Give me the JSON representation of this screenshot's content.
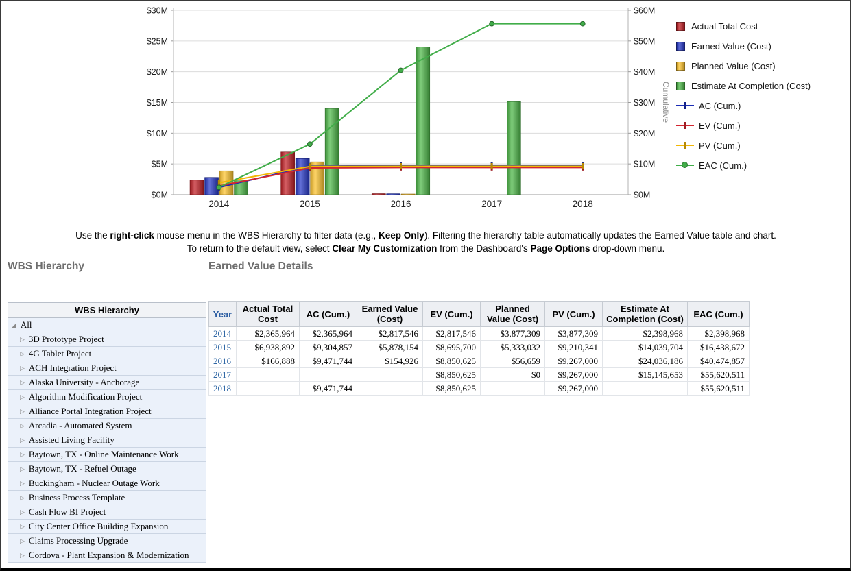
{
  "chart_data": {
    "type": "combo-bar-line",
    "x_categories": [
      "2014",
      "2015",
      "2016",
      "2017",
      "2018"
    ],
    "left_axis": {
      "title": "",
      "unit": "$M",
      "range": [
        0,
        30
      ],
      "tick_values": [
        0,
        5,
        10,
        15,
        20,
        25,
        30
      ],
      "tick_labels": [
        "$0M",
        "$5M",
        "$10M",
        "$15M",
        "$20M",
        "$25M",
        "$30M"
      ]
    },
    "right_axis": {
      "title": "Cumulative",
      "unit": "$M",
      "range": [
        0,
        60
      ],
      "tick_values": [
        0,
        10,
        20,
        30,
        40,
        50,
        60
      ],
      "tick_labels": [
        "$0M",
        "$10M",
        "$20M",
        "$30M",
        "$40M",
        "$50M",
        "$60M"
      ]
    },
    "grid": true,
    "legend_position": "right",
    "bar_series": [
      {
        "name": "Actual Total Cost",
        "color": "#c32026",
        "axis": "left",
        "values_millions": [
          2.365964,
          6.938892,
          0.166888,
          null,
          null
        ]
      },
      {
        "name": "Earned Value (Cost)",
        "color": "#2638c8",
        "axis": "left",
        "values_millions": [
          2.817546,
          5.878154,
          0.154926,
          null,
          null
        ]
      },
      {
        "name": "Planned Value (Cost)",
        "color": "#ffc52f",
        "axis": "left",
        "values_millions": [
          3.877309,
          5.333032,
          0.056659,
          0,
          null
        ]
      },
      {
        "name": "Estimate At Completion (Cost)",
        "color": "#4db848",
        "axis": "left",
        "values_millions": [
          2.398968,
          14.039704,
          24.036186,
          15.145653,
          null
        ]
      }
    ],
    "line_series": [
      {
        "name": "AC (Cum.)",
        "color": "#1b2db5",
        "axis": "right",
        "marker": "tick",
        "values_millions": [
          2.365964,
          9.304857,
          9.471744,
          9.471744,
          9.471744
        ]
      },
      {
        "name": "EV (Cum.)",
        "color": "#d22630",
        "axis": "right",
        "marker": "tick",
        "values_millions": [
          2.817546,
          8.6957,
          8.850625,
          8.850625,
          8.850625
        ]
      },
      {
        "name": "PV (Cum.)",
        "color": "#f2b705",
        "axis": "right",
        "marker": "tick",
        "values_millions": [
          3.877309,
          9.210341,
          9.267,
          9.267,
          9.267
        ]
      },
      {
        "name": "EAC (Cum.)",
        "color": "#41ad49",
        "axis": "right",
        "marker": "dot",
        "values_millions": [
          2.398968,
          16.438672,
          40.474857,
          55.620511,
          55.620511
        ]
      }
    ]
  },
  "legend": {
    "items": [
      {
        "label": "Actual Total Cost",
        "type": "bar",
        "color": "#c32026"
      },
      {
        "label": "Earned Value (Cost)",
        "type": "bar",
        "color": "#2638c8"
      },
      {
        "label": "Planned Value (Cost)",
        "type": "bar",
        "color": "#ffc52f"
      },
      {
        "label": "Estimate At Completion (Cost)",
        "type": "bar",
        "color": "#4db848"
      },
      {
        "label": "AC (Cum.)",
        "type": "line",
        "color": "#1b2db5"
      },
      {
        "label": "EV (Cum.)",
        "type": "line",
        "color": "#d22630"
      },
      {
        "label": "PV (Cum.)",
        "type": "line",
        "color": "#f2b705"
      },
      {
        "label": "EAC (Cum.)",
        "type": "line",
        "color": "#41ad49"
      }
    ]
  },
  "instructions": {
    "lines": [
      [
        {
          "text": "Use the ",
          "bold": false
        },
        {
          "text": "right-click",
          "bold": true
        },
        {
          "text": " mouse menu in the WBS Hierarchy to filter data (e.g., ",
          "bold": false
        },
        {
          "text": "Keep Only",
          "bold": true
        },
        {
          "text": "). Filtering the hierarchy table automatically updates the Earned Value table and chart.",
          "bold": false
        }
      ],
      [
        {
          "text": "To return to the default view, select ",
          "bold": false
        },
        {
          "text": "Clear My Customization",
          "bold": true
        },
        {
          "text": " from the Dashboard's ",
          "bold": false
        },
        {
          "text": "Page Options",
          "bold": true
        },
        {
          "text": " drop-down menu.",
          "bold": false
        }
      ]
    ]
  },
  "wbs": {
    "heading": "WBS Hierarchy",
    "table_header": "WBS Hierarchy",
    "items": [
      {
        "label": "All",
        "level": 0,
        "expanded": true
      },
      {
        "label": "3D Prototype Project",
        "level": 1,
        "expanded": false
      },
      {
        "label": "4G Tablet Project",
        "level": 1,
        "expanded": false
      },
      {
        "label": "ACH Integration Project",
        "level": 1,
        "expanded": false
      },
      {
        "label": "Alaska University - Anchorage",
        "level": 1,
        "expanded": false
      },
      {
        "label": "Algorithm Modification Project",
        "level": 1,
        "expanded": false
      },
      {
        "label": "Alliance Portal Integration Project",
        "level": 1,
        "expanded": false
      },
      {
        "label": "Arcadia - Automated System",
        "level": 1,
        "expanded": false
      },
      {
        "label": "Assisted Living Facility",
        "level": 1,
        "expanded": false
      },
      {
        "label": "Baytown, TX - Online Maintenance Work",
        "level": 1,
        "expanded": false
      },
      {
        "label": "Baytown, TX - Refuel Outage",
        "level": 1,
        "expanded": false
      },
      {
        "label": "Buckingham - Nuclear Outage Work",
        "level": 1,
        "expanded": false
      },
      {
        "label": "Business Process Template",
        "level": 1,
        "expanded": false
      },
      {
        "label": "Cash Flow BI Project",
        "level": 1,
        "expanded": false
      },
      {
        "label": "City Center Office Building Expansion",
        "level": 1,
        "expanded": false
      },
      {
        "label": "Claims Processing Upgrade",
        "level": 1,
        "expanded": false
      },
      {
        "label": "Cordova - Plant Expansion & Modernization",
        "level": 1,
        "expanded": false
      }
    ]
  },
  "details": {
    "heading": "Earned Value Details",
    "columns": [
      "Year",
      "Actual Total Cost",
      "AC (Cum.)",
      "Earned Value (Cost)",
      "EV (Cum.)",
      "Planned Value (Cost)",
      "PV (Cum.)",
      "Estimate At Completion (Cost)",
      "EAC (Cum.)"
    ],
    "rows": [
      [
        "2014",
        "$2,365,964",
        "$2,365,964",
        "$2,817,546",
        "$2,817,546",
        "$3,877,309",
        "$3,877,309",
        "$2,398,968",
        "$2,398,968"
      ],
      [
        "2015",
        "$6,938,892",
        "$9,304,857",
        "$5,878,154",
        "$8,695,700",
        "$5,333,032",
        "$9,210,341",
        "$14,039,704",
        "$16,438,672"
      ],
      [
        "2016",
        "$166,888",
        "$9,471,744",
        "$154,926",
        "$8,850,625",
        "$56,659",
        "$9,267,000",
        "$24,036,186",
        "$40,474,857"
      ],
      [
        "2017",
        "",
        "",
        "",
        "$8,850,625",
        "$0",
        "$9,267,000",
        "$15,145,653",
        "$55,620,511"
      ],
      [
        "2018",
        "",
        "$9,471,744",
        "",
        "$8,850,625",
        "",
        "$9,267,000",
        "",
        "$55,620,511"
      ]
    ]
  }
}
